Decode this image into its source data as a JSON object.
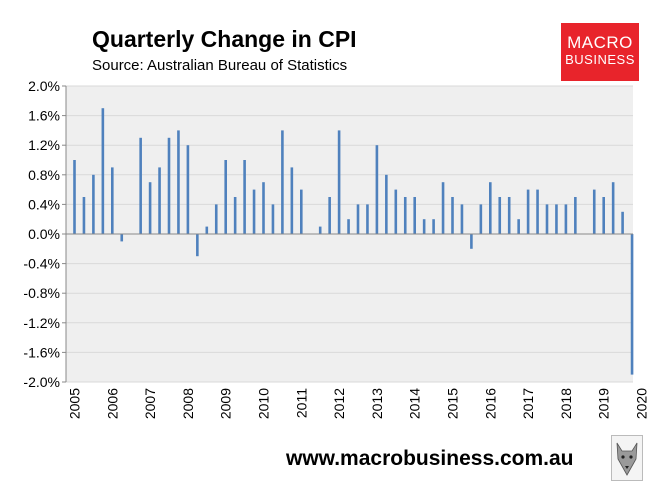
{
  "header": {
    "title": "Quarterly Change in CPI",
    "subtitle": "Source: Australian Bureau of Statistics"
  },
  "logo": {
    "line1": "MACRO",
    "line2": "BUSINESS",
    "color": "#e8242b"
  },
  "footer": {
    "url": "www.macrobusiness.com.au"
  },
  "chart_data": {
    "type": "bar",
    "title": "Quarterly Change in CPI",
    "subtitle": "Source: Australian Bureau of Statistics",
    "xlabel": "",
    "ylabel": "",
    "ylim": [
      -2.0,
      2.0
    ],
    "yticks": [
      "2.0%",
      "1.6%",
      "1.2%",
      "0.8%",
      "0.4%",
      "0.0%",
      "-0.4%",
      "-0.8%",
      "-1.2%",
      "-1.6%",
      "-2.0%"
    ],
    "ytick_values": [
      2.0,
      1.6,
      1.2,
      0.8,
      0.4,
      0.0,
      -0.4,
      -0.8,
      -1.2,
      -1.6,
      -2.0
    ],
    "year_labels": [
      "2005",
      "2006",
      "2007",
      "2008",
      "2009",
      "2010",
      "2011",
      "2012",
      "2013",
      "2014",
      "2015",
      "2016",
      "2017",
      "2018",
      "2019",
      "2020"
    ],
    "quarters_per_year": 4,
    "first_quarter": "2005-Q1",
    "values": [
      1.0,
      0.5,
      0.8,
      1.7,
      0.9,
      -0.1,
      0,
      1.3,
      0.7,
      0.9,
      1.3,
      1.4,
      1.2,
      -0.3,
      0.1,
      0.4,
      1.0,
      0.5,
      1.0,
      0.6,
      0.7,
      0.4,
      1.4,
      0.9,
      0.6,
      0,
      0.1,
      0.5,
      1.4,
      0.2,
      0.4,
      0.4,
      1.2,
      0.8,
      0.6,
      0.5,
      0.5,
      0.2,
      0.2,
      0.7,
      0.5,
      0.4,
      -0.2,
      0.4,
      0.7,
      0.5,
      0.5,
      0.2,
      0.6,
      0.6,
      0.4,
      0.4,
      0.4,
      0.5,
      0,
      0.6,
      0.5,
      0.7,
      0.3,
      -1.9
    ],
    "bar_color": "#4f81bd",
    "plot_bg": "#efefef",
    "grid": true,
    "legend": "none"
  }
}
